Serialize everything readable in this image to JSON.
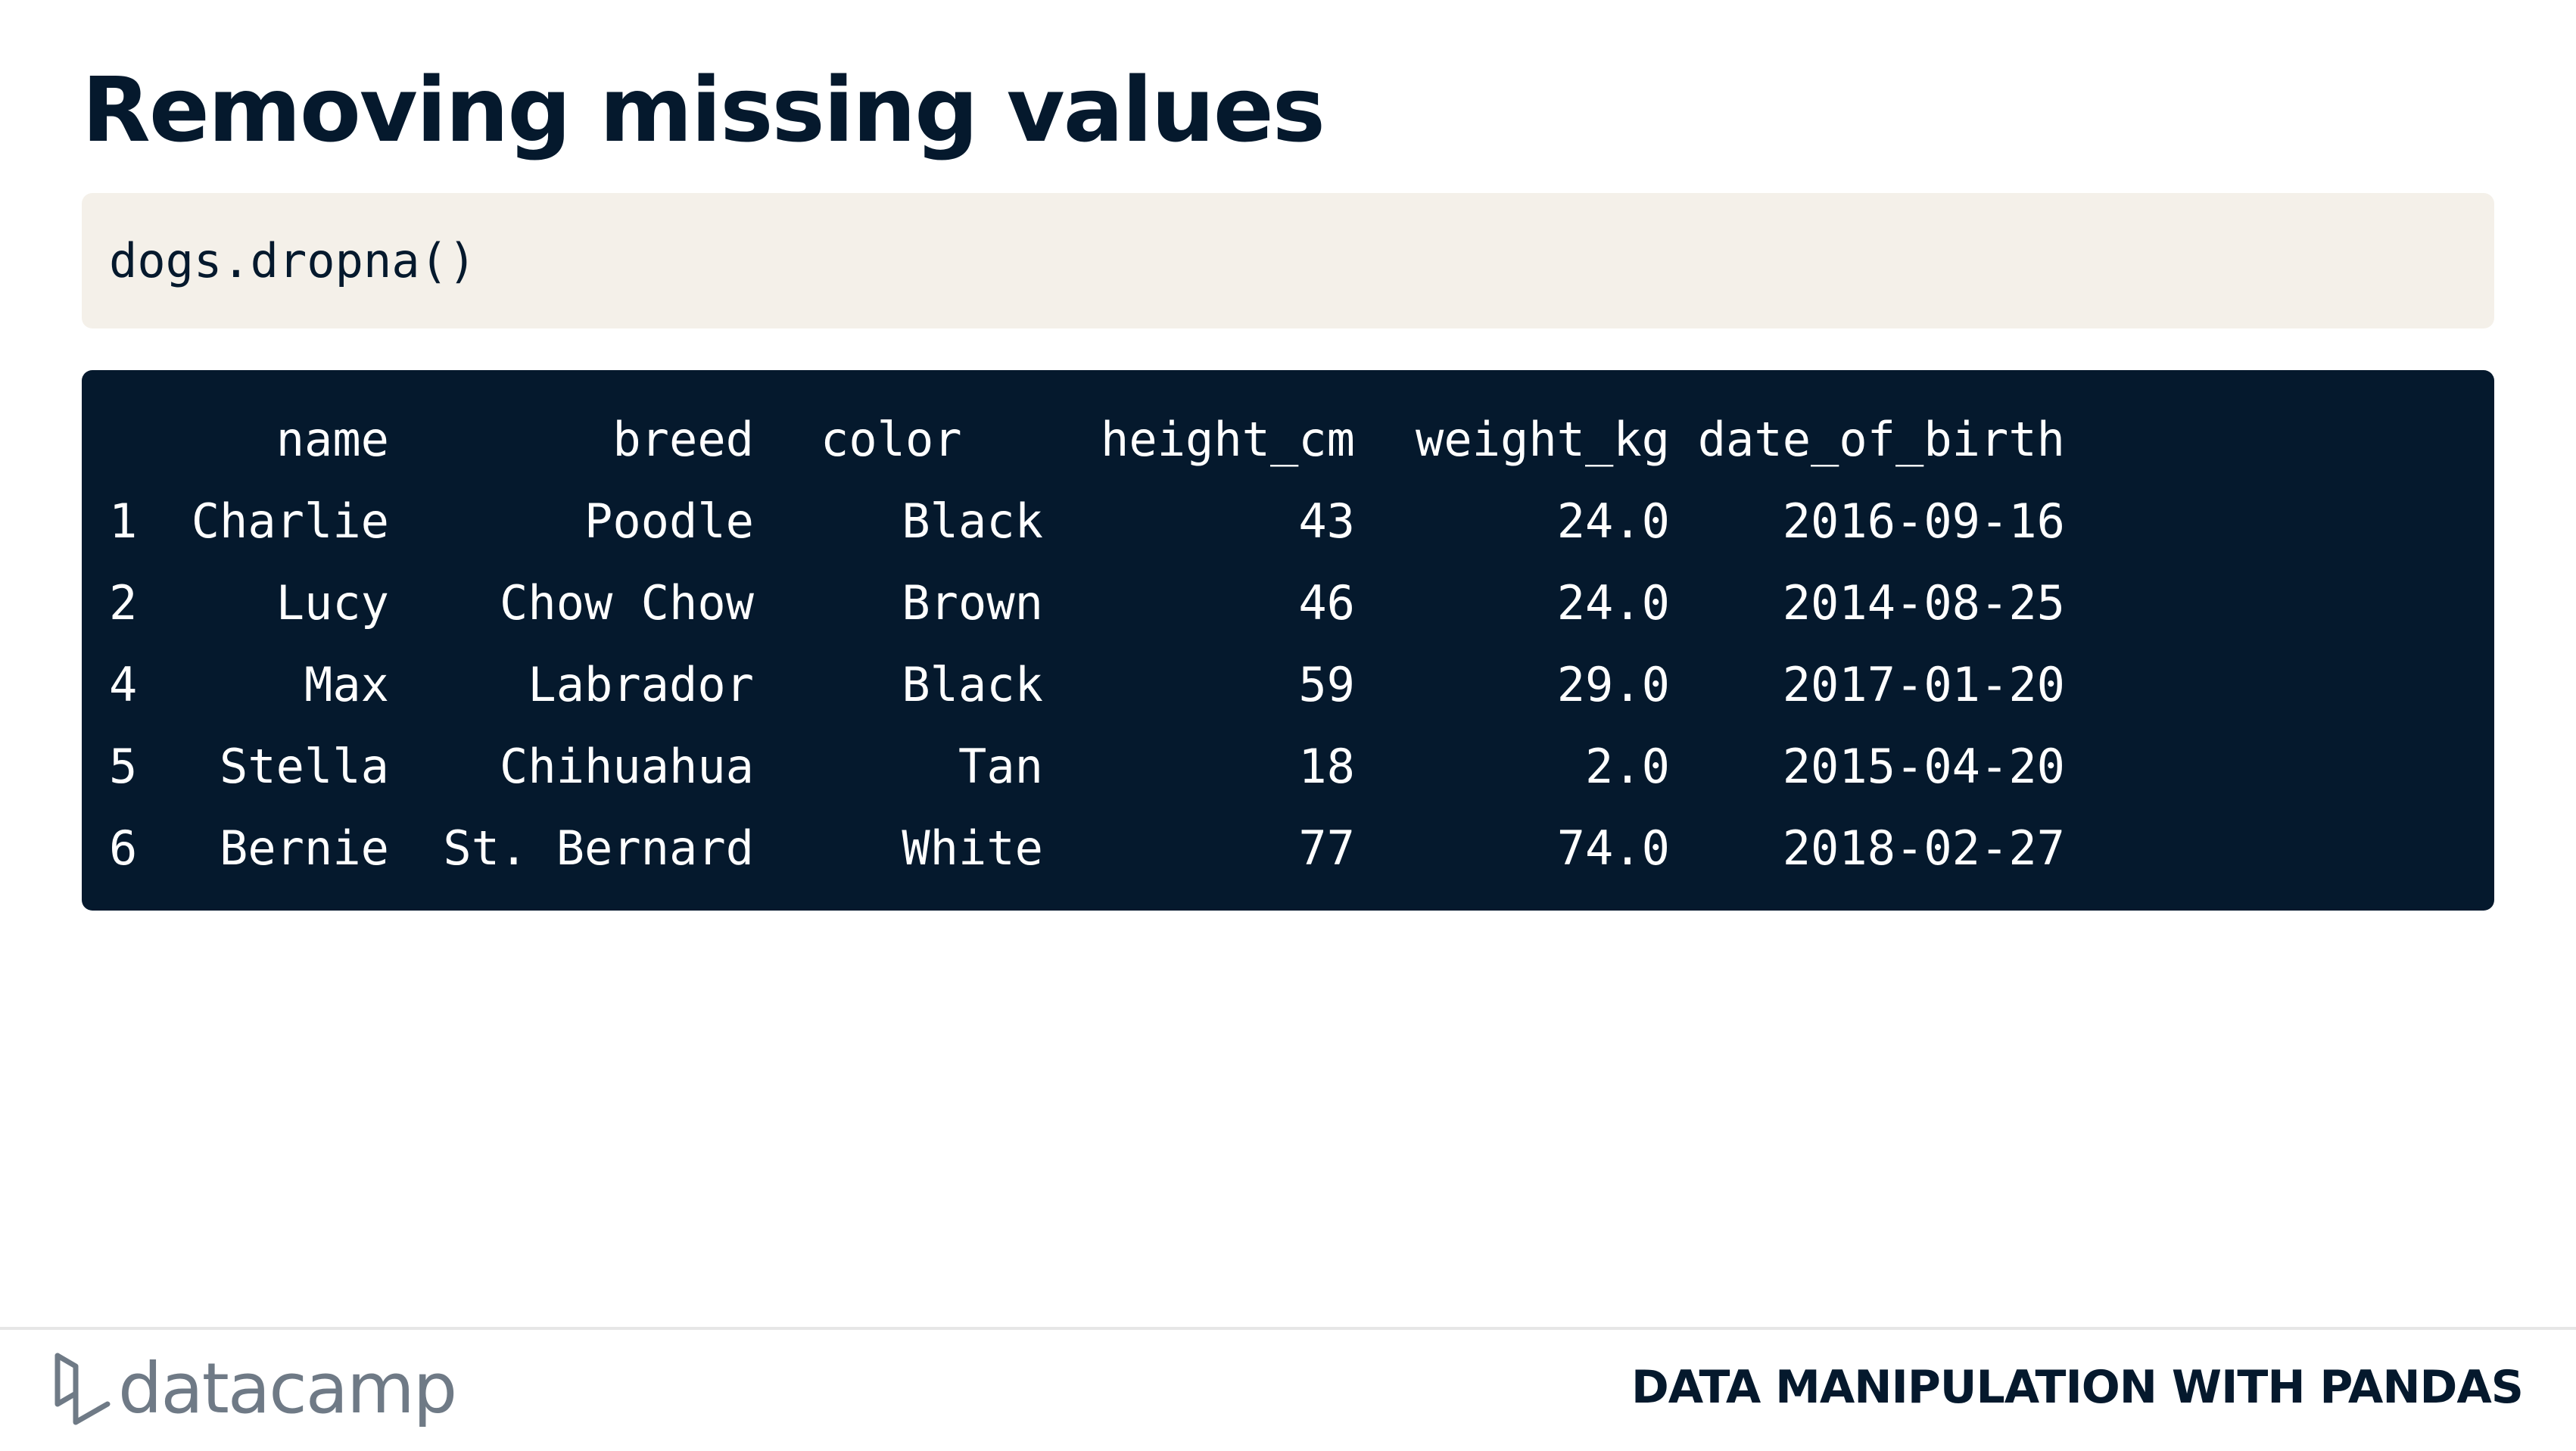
{
  "slide": {
    "title": "Removing missing values",
    "code": "dogs.dropna()"
  },
  "output": {
    "columns": [
      "name",
      "breed",
      "color",
      "height_cm",
      "weight_kg",
      "date_of_birth"
    ],
    "rows": [
      {
        "index": "1",
        "name": "Charlie",
        "breed": "Poodle",
        "color": "Black",
        "height_cm": "43",
        "weight_kg": "24.0",
        "date_of_birth": "2016-09-16"
      },
      {
        "index": "2",
        "name": "Lucy",
        "breed": "Chow Chow",
        "color": "Brown",
        "height_cm": "46",
        "weight_kg": "24.0",
        "date_of_birth": "2014-08-25"
      },
      {
        "index": "4",
        "name": "Max",
        "breed": "Labrador",
        "color": "Black",
        "height_cm": "59",
        "weight_kg": "29.0",
        "date_of_birth": "2017-01-20"
      },
      {
        "index": "5",
        "name": "Stella",
        "breed": "Chihuahua",
        "color": "Tan",
        "height_cm": "18",
        "weight_kg": "2.0",
        "date_of_birth": "2015-04-20"
      },
      {
        "index": "6",
        "name": "Bernie",
        "breed": "St. Bernard",
        "color": "White",
        "height_cm": "77",
        "weight_kg": "74.0",
        "date_of_birth": "2018-02-27"
      }
    ]
  },
  "footer": {
    "logo_text": "datacamp",
    "logo_icon": "datacamp-logo-icon",
    "course": "DATA MANIPULATION WITH PANDAS"
  },
  "colors": {
    "navy": "#05192d",
    "code_bg": "#f4f0e9",
    "logo_gray": "#6f7a86"
  }
}
